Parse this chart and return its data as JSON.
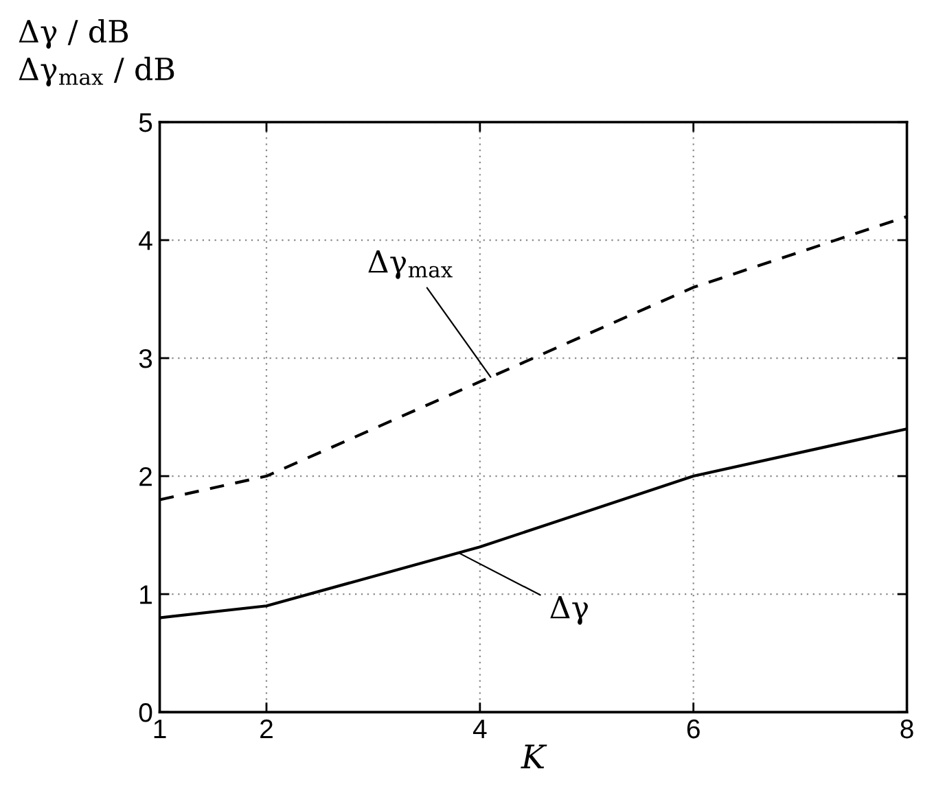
{
  "chart_data": {
    "type": "line",
    "xlabel": "K",
    "ylabel": "Δγ / dB\nΔγ$_{max}$ / dB",
    "x": [
      1,
      2,
      4,
      6,
      8
    ],
    "xlim": [
      1,
      8
    ],
    "xticks": [
      1,
      2,
      4,
      6,
      8
    ],
    "ylim": [
      0,
      5
    ],
    "yticks": [
      0,
      1,
      2,
      3,
      4,
      5
    ],
    "grid": true,
    "marker": "none",
    "annotations": [
      {
        "text": "Δγ$_{max}$",
        "x": 4.1,
        "y": 2.84
      },
      {
        "text": "Δγ",
        "x": 3.8,
        "y": 1.35
      }
    ],
    "series": [
      {
        "color": "#000000",
        "line_style": "dashed",
        "values": [
          1.8,
          2.0,
          2.8,
          3.6,
          4.2
        ]
      },
      {
        "color": "#000000",
        "line_style": "solid",
        "values": [
          0.8,
          0.9,
          1.4,
          2.0,
          2.4
        ]
      }
    ]
  }
}
